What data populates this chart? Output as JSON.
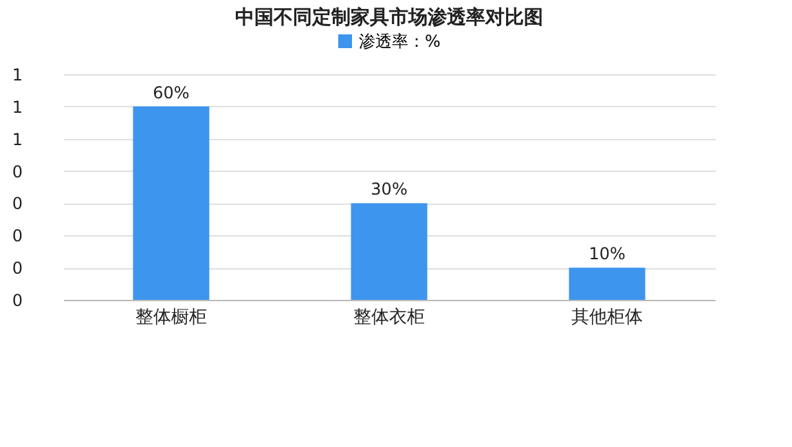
{
  "chart_data": {
    "type": "bar",
    "title": "中国不同定制家具市场渗透率对比图",
    "categories": [
      "整体橱柜",
      "整体衣柜",
      "其他柜体"
    ],
    "series": [
      {
        "name": "渗透率：%",
        "color": "#3d95ee",
        "values": [
          0.6,
          0.3,
          0.1
        ],
        "value_labels": [
          "60%",
          "30%",
          "10%"
        ]
      }
    ],
    "ylim": [
      0,
      0.7
    ],
    "yticks": [
      {
        "value": 0,
        "label": "0"
      },
      {
        "value": 0.1,
        "label": "0"
      },
      {
        "value": 0.2,
        "label": "0"
      },
      {
        "value": 0.3,
        "label": "0"
      },
      {
        "value": 0.4,
        "label": "0"
      },
      {
        "value": 0.5,
        "label": "1"
      },
      {
        "value": 0.6,
        "label": "1"
      },
      {
        "value": 0.7,
        "label": "1"
      }
    ],
    "grid": "y",
    "legend": "top"
  }
}
